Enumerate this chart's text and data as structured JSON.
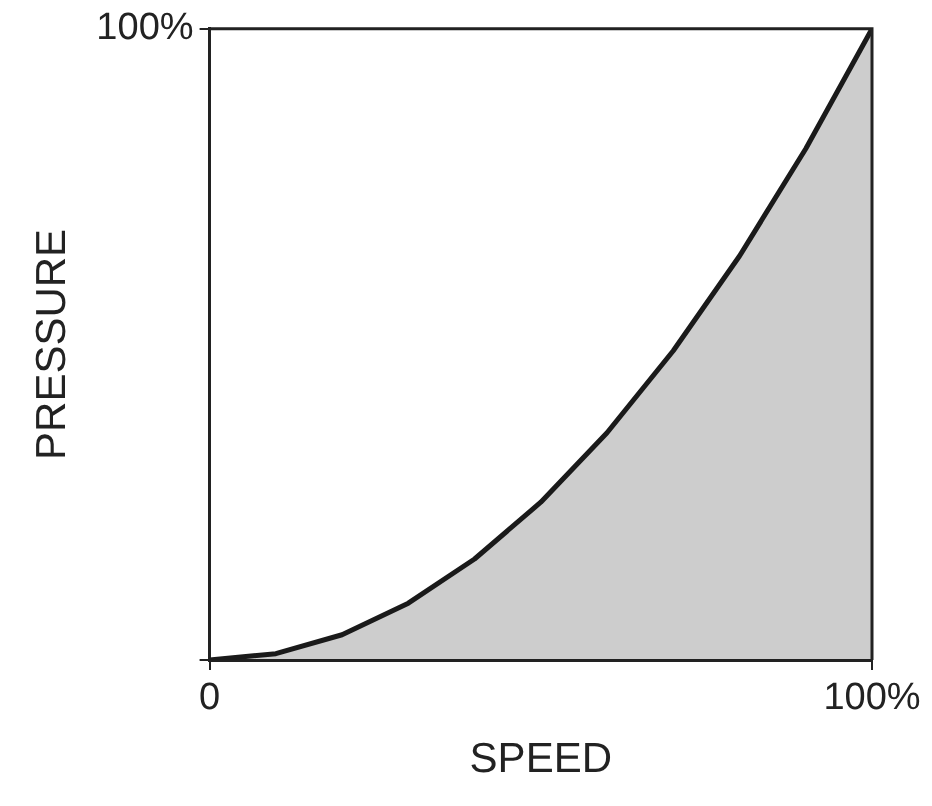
{
  "chart_data": {
    "type": "area",
    "xlabel": "SPEED",
    "ylabel": "PRESSURE",
    "x": [
      0,
      10,
      20,
      30,
      40,
      50,
      60,
      70,
      80,
      90,
      100
    ],
    "series": [
      {
        "color": "#1a1a1a",
        "values": [
          0,
          1,
          4,
          9,
          16,
          25,
          36,
          49,
          64,
          81,
          100
        ]
      }
    ],
    "xlim": [
      0,
      100
    ],
    "ylim": [
      0,
      100
    ],
    "xticks": [
      {
        "value": 0,
        "label": "0"
      },
      {
        "value": 100,
        "label": "100%"
      }
    ],
    "yticks": [
      {
        "value": 0,
        "label": null
      },
      {
        "value": 100,
        "label": "100%"
      }
    ],
    "legend": false,
    "marker": "none",
    "line_style": "solid"
  }
}
